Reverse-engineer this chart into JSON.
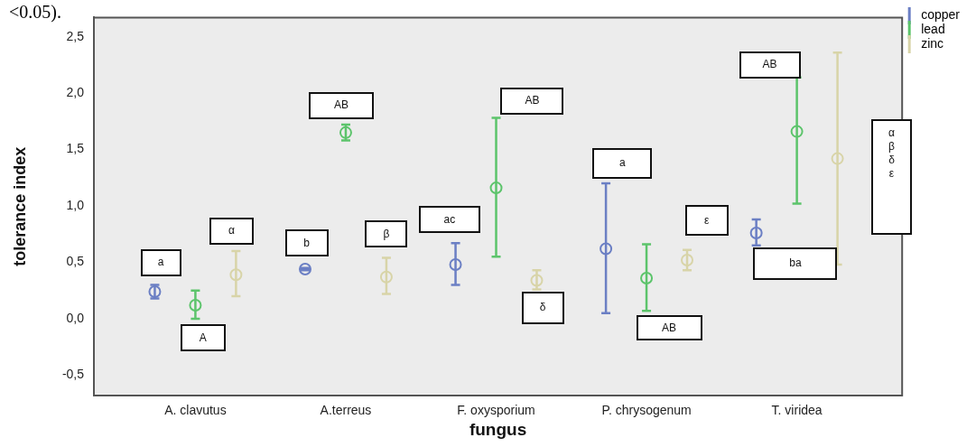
{
  "chart_data": {
    "type": "scatter",
    "xlabel": "fungus",
    "ylabel": "tolerance index",
    "categories": [
      "A. clavutus",
      "A.terreus",
      "F. oxysporium",
      "P. chrysogenum",
      "T. viridea"
    ],
    "series": [
      {
        "name": "copper",
        "color": "#6b7fc4",
        "values": [
          0.24,
          0.44,
          0.48,
          0.62,
          0.76
        ],
        "errors": [
          [
            0.18,
            0.3
          ],
          [
            0.43,
            0.45
          ],
          [
            0.3,
            0.67
          ],
          [
            0.05,
            1.2
          ],
          [
            0.65,
            0.88
          ]
        ]
      },
      {
        "name": "lead",
        "color": "#5cc46b",
        "values": [
          0.12,
          1.65,
          1.16,
          0.36,
          1.66
        ],
        "errors": [
          [
            0.0,
            0.25
          ],
          [
            1.58,
            1.72
          ],
          [
            0.55,
            1.78
          ],
          [
            0.07,
            0.66
          ],
          [
            1.02,
            2.14
          ]
        ]
      },
      {
        "name": "zinc",
        "color": "#d8d4a8",
        "values": [
          0.39,
          0.37,
          0.34,
          0.52,
          1.42
        ],
        "errors": [
          [
            0.2,
            0.6
          ],
          [
            0.22,
            0.54
          ],
          [
            0.26,
            0.43
          ],
          [
            0.43,
            0.61
          ],
          [
            0.48,
            2.36
          ]
        ]
      }
    ],
    "ylim": [
      -0.68,
      2.67
    ],
    "yticks": [
      {
        "value": -0.5,
        "label": "-0,5"
      },
      {
        "value": 0,
        "label": "0,0"
      },
      {
        "value": 0.5,
        "label": "0,5"
      },
      {
        "value": 1,
        "label": "1,0"
      },
      {
        "value": 1.5,
        "label": "1,5"
      },
      {
        "value": 2,
        "label": "2,0"
      },
      {
        "value": 2.5,
        "label": "2,5"
      }
    ],
    "marker": "circle",
    "grid": false,
    "legend": "top right",
    "annotations": [
      "<0.05).",
      "a",
      "A",
      "α",
      "b",
      "AB",
      "β",
      "ac",
      "AB",
      "δ",
      "a",
      "AB",
      "ε",
      "AB",
      "ba",
      "α\nβ\nδ\nε"
    ]
  }
}
